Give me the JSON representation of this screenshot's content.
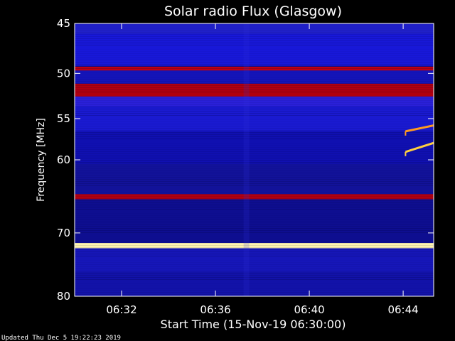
{
  "chart_data": {
    "type": "heatmap",
    "title": "Solar radio Flux (Glasgow)",
    "xlabel": "Start Time (15-Nov-19 06:30:00)",
    "ylabel": "Frequency [MHz]",
    "x_range_minutes": [
      0,
      15.3
    ],
    "x_ticks": [
      {
        "minute": 2,
        "label": "06:32"
      },
      {
        "minute": 6,
        "label": "06:36"
      },
      {
        "minute": 10,
        "label": "06:40"
      },
      {
        "minute": 14,
        "label": "06:44"
      }
    ],
    "y_range_mhz": [
      45,
      80
    ],
    "y_scale": "log",
    "y_ticks": [
      {
        "mhz": 45,
        "label": "45"
      },
      {
        "mhz": 50,
        "label": "50"
      },
      {
        "mhz": 55,
        "label": "55"
      },
      {
        "mhz": 60,
        "label": "60"
      },
      {
        "mhz": 70,
        "label": "70"
      },
      {
        "mhz": 80,
        "label": "80"
      }
    ],
    "bands": [
      {
        "mhz_from": 45.0,
        "mhz_to": 46.0,
        "color": "#2020c8"
      },
      {
        "mhz_from": 46.0,
        "mhz_to": 49.2,
        "color": "#1818d8"
      },
      {
        "mhz_from": 49.3,
        "mhz_to": 49.7,
        "color": "#c00010"
      },
      {
        "mhz_from": 49.7,
        "mhz_to": 51.1,
        "color": "#1414b8"
      },
      {
        "mhz_from": 51.1,
        "mhz_to": 52.5,
        "color": "#b00010"
      },
      {
        "mhz_from": 52.5,
        "mhz_to": 53.6,
        "color": "#2a20d8"
      },
      {
        "mhz_from": 53.6,
        "mhz_to": 56.5,
        "color": "#1a1ad0"
      },
      {
        "mhz_from": 56.5,
        "mhz_to": 60.5,
        "color": "#1010b0"
      },
      {
        "mhz_from": 60.5,
        "mhz_to": 64.5,
        "color": "#121299"
      },
      {
        "mhz_from": 64.5,
        "mhz_to": 65.2,
        "color": "#b00010"
      },
      {
        "mhz_from": 65.2,
        "mhz_to": 71.5,
        "color": "#0e0e90"
      },
      {
        "mhz_from": 71.5,
        "mhz_to": 72.3,
        "color": "#fff4b0"
      },
      {
        "mhz_from": 72.3,
        "mhz_to": 76.0,
        "color": "#1616b8"
      },
      {
        "mhz_from": 76.0,
        "mhz_to": 80.0,
        "color": "#1212a8"
      }
    ],
    "burst_traces": [
      {
        "minute_start": 14.1,
        "minute_end": 15.3,
        "mhz_start": 56.5,
        "mhz_end": 55.8,
        "color": "#ff9a20"
      },
      {
        "minute_start": 14.1,
        "minute_end": 15.3,
        "mhz_start": 59.0,
        "mhz_end": 57.9,
        "color": "#ffd040"
      }
    ],
    "colors": {
      "background": "#000000",
      "plot_base": "#10109a",
      "text": "#ffffff"
    }
  },
  "footer": {
    "updated": "Updated Thu Dec  5 19:22:23 2019"
  }
}
